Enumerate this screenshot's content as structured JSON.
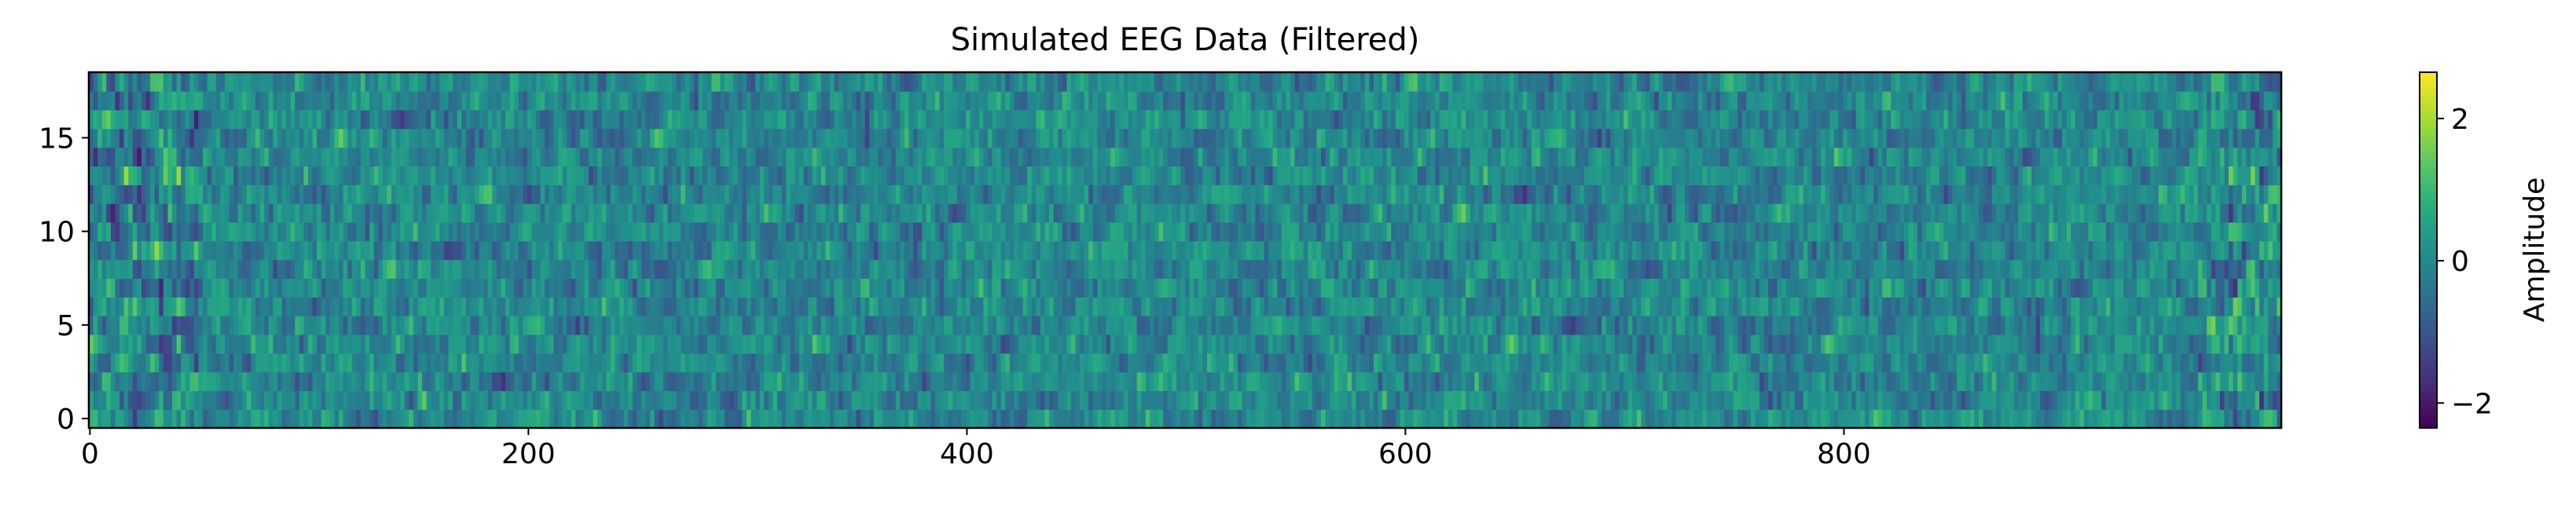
{
  "chart_data": {
    "type": "heatmap",
    "title": "Simulated EEG Data (Filtered)",
    "xlabel": "",
    "ylabel": "",
    "xlim": [
      0,
      999
    ],
    "ylim": [
      0,
      18
    ],
    "n_channels": 19,
    "n_samples": 1000,
    "x_ticks": [
      0,
      200,
      400,
      600,
      800
    ],
    "x_tick_labels": [
      "0",
      "200",
      "400",
      "600",
      "800"
    ],
    "y_ticks": [
      0,
      5,
      10,
      15
    ],
    "y_tick_labels": [
      "0",
      "5",
      "10",
      "15"
    ],
    "colormap": "viridis",
    "colorbar": {
      "label": "Amplitude",
      "range": [
        -2.35,
        2.65
      ],
      "ticks": [
        -2,
        0,
        2
      ],
      "tick_labels": [
        "−2",
        "0",
        "2"
      ]
    },
    "grid": false,
    "legend": "none"
  }
}
